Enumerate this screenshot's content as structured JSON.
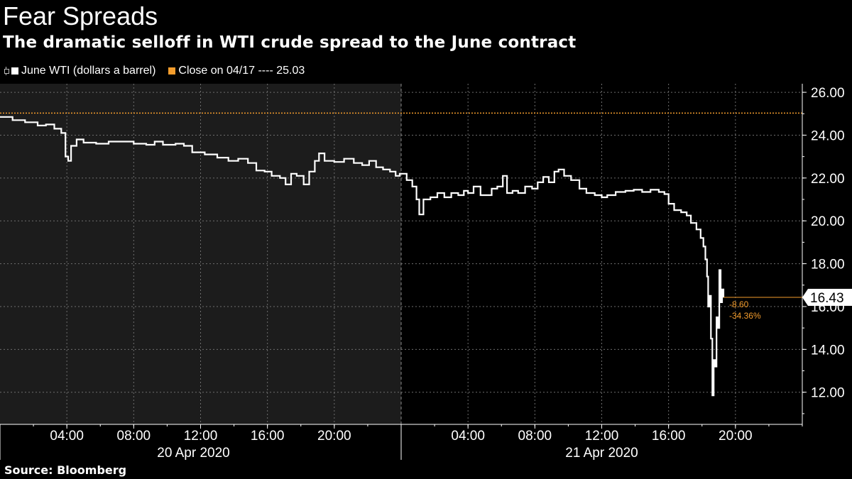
{
  "title": "Fear Spreads",
  "subtitle": "The dramatic selloff in WTI crude spread to the June contract",
  "legend": {
    "series_label": "June WTI (dollars a barrel)",
    "close_label": "Close on 04/17 ---- 25.03"
  },
  "source": "Source: Bloomberg",
  "colors": {
    "series": "#ffffff",
    "close": "#f39c2c",
    "shade": "#1c1c1c",
    "grid": "#6e6e6e"
  },
  "chart_data": {
    "type": "line",
    "title": "Fear Spreads",
    "subtitle": "The dramatic selloff in WTI crude spread to the June contract",
    "xlim": [
      "2020-04-20 00:00",
      "2020-04-22 00:00"
    ],
    "ylim": [
      10.5,
      26.4
    ],
    "y_ticks": [
      "12.00",
      "14.00",
      "16.00",
      "18.00",
      "20.00",
      "22.00",
      "24.00",
      "26.00"
    ],
    "x_ticks": [
      {
        "t": "2020-04-20 04:00",
        "label": "04:00"
      },
      {
        "t": "2020-04-20 08:00",
        "label": "08:00"
      },
      {
        "t": "2020-04-20 12:00",
        "label": "12:00"
      },
      {
        "t": "2020-04-20 16:00",
        "label": "16:00"
      },
      {
        "t": "2020-04-20 20:00",
        "label": "20:00"
      },
      {
        "t": "2020-04-21 04:00",
        "label": "04:00"
      },
      {
        "t": "2020-04-21 08:00",
        "label": "08:00"
      },
      {
        "t": "2020-04-21 12:00",
        "label": "12:00"
      },
      {
        "t": "2020-04-21 16:00",
        "label": "16:00"
      },
      {
        "t": "2020-04-21 20:00",
        "label": "20:00"
      }
    ],
    "date_labels": [
      "20 Apr 2020",
      "21 Apr 2020"
    ],
    "grid": true,
    "shaded_day": "2020-04-20",
    "reference_line": {
      "name": "Close on 04/17",
      "value": 25.03
    },
    "last_value": {
      "label": "16.43",
      "value": 16.43
    },
    "change_labels": [
      "-8.60",
      "-34.36%"
    ],
    "series": [
      {
        "name": "June WTI (dollars a barrel)",
        "points": [
          [
            "2020-04-20 00:00",
            24.85
          ],
          [
            "2020-04-20 00:45",
            24.7
          ],
          [
            "2020-04-20 01:30",
            24.6
          ],
          [
            "2020-04-20 02:15",
            24.45
          ],
          [
            "2020-04-20 02:45",
            24.5
          ],
          [
            "2020-04-20 03:15",
            24.3
          ],
          [
            "2020-04-20 03:40",
            24.1
          ],
          [
            "2020-04-20 03:55",
            23.0
          ],
          [
            "2020-04-20 04:05",
            22.8
          ],
          [
            "2020-04-20 04:15",
            23.5
          ],
          [
            "2020-04-20 04:35",
            23.8
          ],
          [
            "2020-04-20 05:00",
            23.65
          ],
          [
            "2020-04-20 05:45",
            23.6
          ],
          [
            "2020-04-20 06:30",
            23.7
          ],
          [
            "2020-04-20 07:15",
            23.7
          ],
          [
            "2020-04-20 08:00",
            23.6
          ],
          [
            "2020-04-20 08:45",
            23.55
          ],
          [
            "2020-04-20 09:15",
            23.7
          ],
          [
            "2020-04-20 09:45",
            23.55
          ],
          [
            "2020-04-20 10:30",
            23.6
          ],
          [
            "2020-04-20 11:00",
            23.5
          ],
          [
            "2020-04-20 11:30",
            23.2
          ],
          [
            "2020-04-20 12:15",
            23.1
          ],
          [
            "2020-04-20 13:00",
            22.95
          ],
          [
            "2020-04-20 13:40",
            22.8
          ],
          [
            "2020-04-20 14:15",
            22.9
          ],
          [
            "2020-04-20 14:50",
            22.7
          ],
          [
            "2020-04-20 15:20",
            22.35
          ],
          [
            "2020-04-20 15:50",
            22.3
          ],
          [
            "2020-04-20 16:15",
            22.1
          ],
          [
            "2020-04-20 16:45",
            22.0
          ],
          [
            "2020-04-20 17:05",
            21.7
          ],
          [
            "2020-04-20 17:25",
            22.2
          ],
          [
            "2020-04-20 17:45",
            22.1
          ],
          [
            "2020-04-20 18:10",
            21.7
          ],
          [
            "2020-04-20 18:30",
            22.3
          ],
          [
            "2020-04-20 18:50",
            22.8
          ],
          [
            "2020-04-20 19:05",
            23.15
          ],
          [
            "2020-04-20 19:25",
            22.8
          ],
          [
            "2020-04-20 20:00",
            22.75
          ],
          [
            "2020-04-20 20:35",
            22.9
          ],
          [
            "2020-04-20 21:10",
            22.7
          ],
          [
            "2020-04-20 21:40",
            22.6
          ],
          [
            "2020-04-20 22:05",
            22.8
          ],
          [
            "2020-04-20 22:30",
            22.5
          ],
          [
            "2020-04-20 22:55",
            22.4
          ],
          [
            "2020-04-20 23:20",
            22.3
          ],
          [
            "2020-04-20 23:40",
            22.1
          ],
          [
            "2020-04-20 23:55",
            22.2
          ],
          [
            "2020-04-21 00:20",
            21.9
          ],
          [
            "2020-04-21 00:40",
            21.6
          ],
          [
            "2020-04-21 00:55",
            21.0
          ],
          [
            "2020-04-21 01:05",
            20.3
          ],
          [
            "2020-04-21 01:20",
            21.0
          ],
          [
            "2020-04-21 01:45",
            21.1
          ],
          [
            "2020-04-21 02:10",
            21.3
          ],
          [
            "2020-04-21 02:35",
            21.1
          ],
          [
            "2020-04-21 03:00",
            21.3
          ],
          [
            "2020-04-21 03:25",
            21.2
          ],
          [
            "2020-04-21 03:45",
            21.4
          ],
          [
            "2020-04-21 04:00",
            21.3
          ],
          [
            "2020-04-21 04:20",
            21.6
          ],
          [
            "2020-04-21 04:45",
            21.2
          ],
          [
            "2020-04-21 05:05",
            21.2
          ],
          [
            "2020-04-21 05:25",
            21.5
          ],
          [
            "2020-04-21 05:45",
            21.6
          ],
          [
            "2020-04-21 06:05",
            22.1
          ],
          [
            "2020-04-21 06:20",
            21.3
          ],
          [
            "2020-04-21 06:40",
            21.4
          ],
          [
            "2020-04-21 07:00",
            21.3
          ],
          [
            "2020-04-21 07:25",
            21.6
          ],
          [
            "2020-04-21 07:50",
            21.5
          ],
          [
            "2020-04-21 08:10",
            21.8
          ],
          [
            "2020-04-21 08:30",
            22.05
          ],
          [
            "2020-04-21 08:50",
            21.8
          ],
          [
            "2020-04-21 09:10",
            22.3
          ],
          [
            "2020-04-21 09:25",
            22.4
          ],
          [
            "2020-04-21 09:45",
            22.1
          ],
          [
            "2020-04-21 10:10",
            21.9
          ],
          [
            "2020-04-21 10:40",
            21.5
          ],
          [
            "2020-04-21 11:05",
            21.3
          ],
          [
            "2020-04-21 11:35",
            21.2
          ],
          [
            "2020-04-21 12:00",
            21.1
          ],
          [
            "2020-04-21 12:20",
            21.2
          ],
          [
            "2020-04-21 12:50",
            21.35
          ],
          [
            "2020-04-21 13:25",
            21.4
          ],
          [
            "2020-04-21 13:55",
            21.45
          ],
          [
            "2020-04-21 14:25",
            21.35
          ],
          [
            "2020-04-21 14:55",
            21.45
          ],
          [
            "2020-04-21 15:25",
            21.35
          ],
          [
            "2020-04-21 15:45",
            21.25
          ],
          [
            "2020-04-21 16:00",
            20.8
          ],
          [
            "2020-04-21 16:20",
            20.5
          ],
          [
            "2020-04-21 16:45",
            20.4
          ],
          [
            "2020-04-21 17:05",
            20.25
          ],
          [
            "2020-04-21 17:20",
            19.9
          ],
          [
            "2020-04-21 17:40",
            19.6
          ],
          [
            "2020-04-21 17:55",
            19.2
          ],
          [
            "2020-04-21 18:05",
            18.8
          ],
          [
            "2020-04-21 18:12",
            18.2
          ],
          [
            "2020-04-21 18:18",
            17.4
          ],
          [
            "2020-04-21 18:22",
            16.0
          ],
          [
            "2020-04-21 18:27",
            16.5
          ],
          [
            "2020-04-21 18:32",
            14.5
          ],
          [
            "2020-04-21 18:37",
            11.85
          ],
          [
            "2020-04-21 18:42",
            13.5
          ],
          [
            "2020-04-21 18:47",
            13.2
          ],
          [
            "2020-04-21 18:52",
            15.5
          ],
          [
            "2020-04-21 18:57",
            15.0
          ],
          [
            "2020-04-21 19:02",
            17.7
          ],
          [
            "2020-04-21 19:07",
            16.2
          ],
          [
            "2020-04-21 19:12",
            16.8
          ],
          [
            "2020-04-21 19:17",
            16.43
          ]
        ]
      }
    ]
  }
}
